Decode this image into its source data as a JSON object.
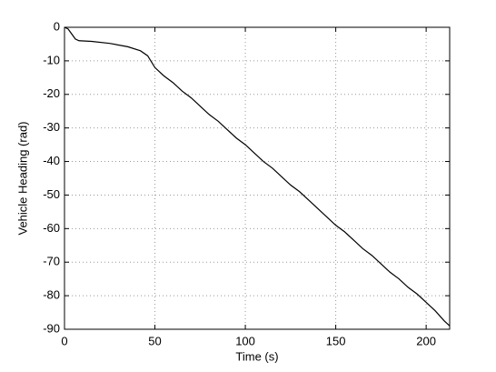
{
  "chart_data": {
    "type": "line",
    "x_label": "Time (s)",
    "y_label": "Vehicle Heading (rad)",
    "x": [
      0,
      2,
      4,
      6,
      8,
      15,
      25,
      35,
      42,
      46,
      50,
      55,
      60,
      65,
      70,
      75,
      80,
      85,
      90,
      95,
      100,
      105,
      110,
      115,
      120,
      125,
      130,
      135,
      140,
      145,
      150,
      155,
      160,
      165,
      170,
      175,
      180,
      185,
      190,
      195,
      200,
      205,
      210,
      213
    ],
    "series": [
      {
        "color": "#000000",
        "values": [
          0,
          -0.5,
          -2,
          -3.5,
          -4,
          -4.2,
          -4.8,
          -5.8,
          -7,
          -8.5,
          -12,
          -14.5,
          -16.5,
          -19,
          -21,
          -23.5,
          -26,
          -28,
          -30.5,
          -33,
          -35,
          -37.5,
          -40,
          -42,
          -44.5,
          -47,
          -49,
          -51.5,
          -54,
          -56.5,
          -59,
          -61,
          -63.5,
          -66,
          -68,
          -70.5,
          -73,
          -75,
          -77.5,
          -79.5,
          -82,
          -84.5,
          -87.5,
          -89
        ]
      }
    ],
    "xlim": [
      0,
      213
    ],
    "ylim": [
      -90,
      0
    ],
    "xticks": [
      0,
      50,
      100,
      150,
      200
    ],
    "yticks": [
      0,
      -10,
      -20,
      -30,
      -40,
      -50,
      -60,
      -70,
      -80,
      -90
    ],
    "grid": true
  }
}
